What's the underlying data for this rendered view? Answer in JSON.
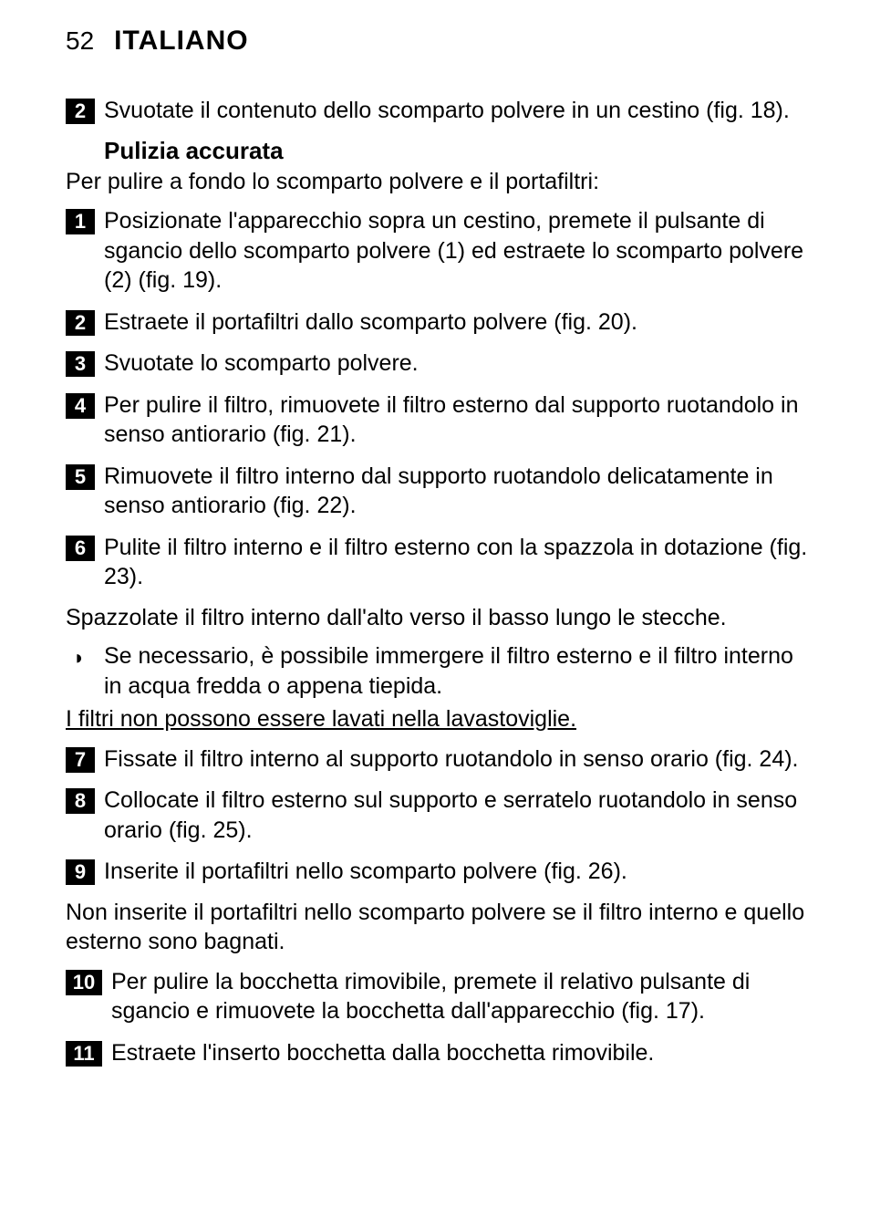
{
  "header": {
    "page_number": "52",
    "language": "ITALIANO"
  },
  "blocks": [
    {
      "kind": "step",
      "num": "2",
      "text": "Svuotate il contenuto dello scomparto polvere in un cestino (fig. 18)."
    },
    {
      "kind": "subheading",
      "text": "Pulizia accurata"
    },
    {
      "kind": "body",
      "text": "Per pulire a fondo lo scomparto polvere e il portafiltri:"
    },
    {
      "kind": "step",
      "num": "1",
      "text": "Posizionate l'apparecchio sopra un cestino, premete il pulsante di sgancio dello scomparto polvere (1) ed estraete lo scomparto polvere (2) (fig. 19)."
    },
    {
      "kind": "step",
      "num": "2",
      "text": "Estraete il portafiltri dallo scomparto polvere (fig. 20)."
    },
    {
      "kind": "step",
      "num": "3",
      "text": "Svuotate lo scomparto polvere."
    },
    {
      "kind": "step",
      "num": "4",
      "text": "Per pulire il filtro, rimuovete il filtro esterno dal supporto ruotandolo in senso antiorario (fig. 21)."
    },
    {
      "kind": "step",
      "num": "5",
      "text": "Rimuovete il filtro interno dal supporto ruotandolo delicatamente in senso antiorario (fig. 22)."
    },
    {
      "kind": "step",
      "num": "6",
      "text": "Pulite il filtro interno e il filtro esterno con la spazzola in dotazione (fig. 23)."
    },
    {
      "kind": "body",
      "text": "Spazzolate il filtro interno dall'alto verso il basso lungo le stecche."
    },
    {
      "kind": "bullet",
      "text": "Se necessario, è possibile immergere il filtro esterno e il filtro interno in acqua fredda o appena tiepida."
    },
    {
      "kind": "body_underline",
      "text": "I filtri non possono essere lavati nella lavastoviglie."
    },
    {
      "kind": "step",
      "num": "7",
      "text": "Fissate il filtro interno al supporto ruotandolo in senso orario (fig. 24)."
    },
    {
      "kind": "step",
      "num": "8",
      "text": "Collocate il filtro esterno sul supporto e serratelo ruotandolo in senso orario (fig. 25)."
    },
    {
      "kind": "step",
      "num": "9",
      "text": "Inserite il portafiltri nello scomparto polvere (fig. 26)."
    },
    {
      "kind": "body",
      "text": "Non inserite il portafiltri nello scomparto polvere se il filtro interno e quello esterno sono bagnati."
    },
    {
      "kind": "step",
      "num": "10",
      "text": "Per pulire la bocchetta rimovibile, premete il relativo pulsante di sgancio e rimuovete la bocchetta dall'apparecchio (fig. 17).",
      "wide": true
    },
    {
      "kind": "step",
      "num": "11",
      "text": "Estraete l'inserto bocchetta dalla bocchetta rimovibile.",
      "wide": true
    }
  ],
  "style": {
    "bg_color": "#ffffff",
    "text_color": "#000000",
    "badge_bg": "#000000",
    "badge_fg": "#ffffff",
    "body_fontsize": 25,
    "badge_fontsize": 22,
    "subheading_fontsize": 26,
    "header_page_fontsize": 28,
    "header_lang_fontsize": 30
  }
}
